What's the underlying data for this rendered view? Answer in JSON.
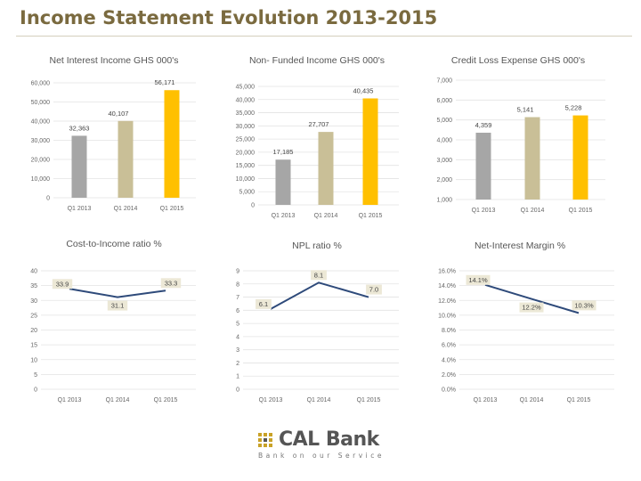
{
  "page": {
    "title": "Income Statement Evolution 2013-2015"
  },
  "colors": {
    "q1_2013": "#a6a6a6",
    "q1_2014": "#c9bf97",
    "q1_2015": "#ffc000",
    "line": "#2e4a7a",
    "title": "#7a6a3f"
  },
  "logo": {
    "name": "CAL Bank",
    "tagline": "Bank on our Service"
  },
  "chart_data": [
    {
      "id": "nii",
      "type": "bar",
      "title": "Net Interest Income GHS 000's",
      "categories": [
        "Q1 2013",
        "Q1 2014",
        "Q1 2015"
      ],
      "values": [
        32363,
        40107,
        56171
      ],
      "labels": [
        "32,363",
        "40,107",
        "56,171"
      ],
      "ylim": [
        0,
        60000
      ],
      "ticks": [
        0,
        10000,
        20000,
        30000,
        40000,
        50000,
        60000
      ],
      "tick_labels": [
        "0",
        "10,000",
        "20,000",
        "30,000",
        "40,000",
        "50,000",
        "60,000"
      ]
    },
    {
      "id": "nfi",
      "type": "bar",
      "title": "Non- Funded Income GHS 000's",
      "categories": [
        "Q1 2013",
        "Q1 2014",
        "Q1 2015"
      ],
      "values": [
        17185,
        27707,
        40435
      ],
      "labels": [
        "17,185",
        "27,707",
        "40,435"
      ],
      "ylim": [
        0,
        45000
      ],
      "ticks": [
        0,
        5000,
        10000,
        15000,
        20000,
        25000,
        30000,
        35000,
        40000,
        45000
      ],
      "tick_labels": [
        "0",
        "5,000",
        "10,000",
        "15,000",
        "20,000",
        "25,000",
        "30,000",
        "35,000",
        "40,000",
        "45,000"
      ]
    },
    {
      "id": "cle",
      "type": "bar",
      "title": "Credit Loss Expense GHS 000's",
      "categories": [
        "Q1 2013",
        "Q1 2014",
        "Q1 2015"
      ],
      "values": [
        4359,
        5141,
        5228
      ],
      "labels": [
        "4,359",
        "5,141",
        "5,228"
      ],
      "ylim": [
        1000,
        7000
      ],
      "ticks": [
        1000,
        2000,
        3000,
        4000,
        5000,
        6000,
        7000
      ],
      "tick_labels": [
        "1,000",
        "2,000",
        "3,000",
        "4,000",
        "5,000",
        "6,000",
        "7,000"
      ]
    },
    {
      "id": "cti",
      "type": "line",
      "title": "Cost-to-Income ratio %",
      "categories": [
        "Q1 2013",
        "Q1 2014",
        "Q1 2015"
      ],
      "values": [
        33.9,
        31.1,
        33.3
      ],
      "labels": [
        "33.9",
        "31.1",
        "33.3"
      ],
      "ylim": [
        0,
        40
      ],
      "ticks": [
        0,
        5,
        10,
        15,
        20,
        25,
        30,
        35,
        40
      ],
      "tick_labels": [
        "0",
        "5",
        "10",
        "15",
        "20",
        "25",
        "30",
        "35",
        "40"
      ]
    },
    {
      "id": "npl",
      "type": "line",
      "title": "NPL ratio %",
      "categories": [
        "Q1 2013",
        "Q1 2014",
        "Q1 2015"
      ],
      "values": [
        6.1,
        8.1,
        7.0
      ],
      "labels": [
        "6.1",
        "8.1",
        "7.0"
      ],
      "ylim": [
        0,
        9
      ],
      "ticks": [
        0,
        1,
        2,
        3,
        4,
        5,
        6,
        7,
        8,
        9
      ],
      "tick_labels": [
        "0",
        "1",
        "2",
        "3",
        "4",
        "5",
        "6",
        "7",
        "8",
        "9"
      ]
    },
    {
      "id": "nim",
      "type": "line",
      "title": "Net-Interest Margin %",
      "categories": [
        "Q1 2013",
        "Q1 2014",
        "Q1 2015"
      ],
      "values": [
        14.1,
        12.2,
        10.3
      ],
      "labels": [
        "14.1%",
        "12.2%",
        "10.3%"
      ],
      "ylim": [
        0,
        16
      ],
      "ticks": [
        0,
        2,
        4,
        6,
        8,
        10,
        12,
        14,
        16
      ],
      "tick_labels": [
        "0.0%",
        "2.0%",
        "4.0%",
        "6.0%",
        "8.0%",
        "10.0%",
        "12.0%",
        "14.0%",
        "16.0%"
      ]
    }
  ]
}
